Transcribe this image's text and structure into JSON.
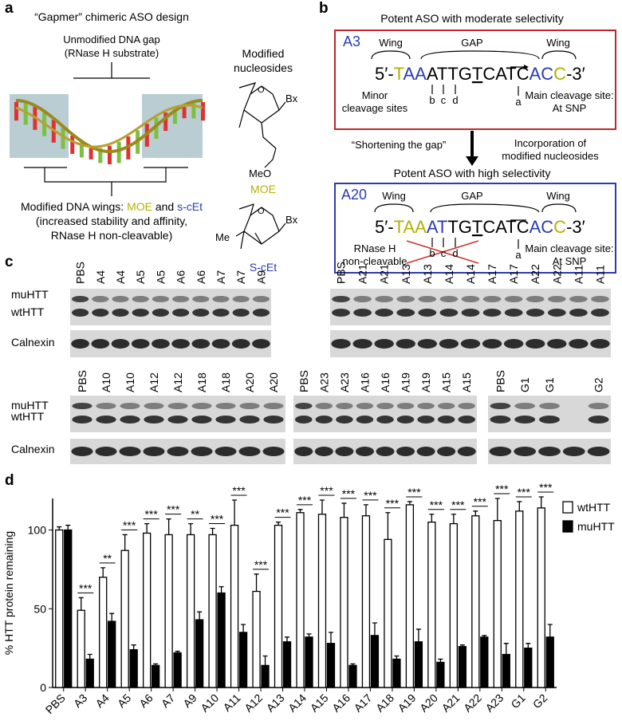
{
  "panel_a": {
    "label": "a",
    "title": "“Gapmer” chimeric ASO design",
    "gap_label": [
      "Unmodified DNA gap",
      "(RNase H substrate)"
    ],
    "mod_title": [
      "Modified",
      "nucleosides"
    ],
    "moe": {
      "bx": "Bx",
      "meo": "MeO",
      "name": "MOE",
      "o": "O"
    },
    "scet": {
      "bx": "Bx",
      "me": "Me",
      "name": "S-cEt",
      "o": "O"
    },
    "wings": {
      "prefix": "Modified DNA wings: ",
      "moe": "MOE",
      "and": " and ",
      "scet": "s-cEt"
    },
    "wings_lines": [
      "(increased stability and affinity,",
      "RNase H non-cleavable)"
    ]
  },
  "panel_b": {
    "label": "b",
    "top_title": "Potent ASO with moderate selectivity",
    "bottom_title": "Potent ASO with high selectivity",
    "a3": {
      "name": "A3",
      "wing": "Wing",
      "gap": "GAP",
      "wing2": "Wing",
      "sequence": [
        {
          "text": "5′-",
          "color": "#000000"
        },
        {
          "text": "T",
          "color": "#b3b000"
        },
        {
          "text": "AA",
          "color": "#2b3bb0"
        },
        {
          "text": "ATTG",
          "color": "#000000"
        },
        {
          "text": "T",
          "color": "#000000",
          "underline": true
        },
        {
          "text": "CATC",
          "color": "#000000"
        },
        {
          "text": "AC",
          "color": "#2b3bb0"
        },
        {
          "text": "C",
          "color": "#b3b000"
        },
        {
          "text": "-3′",
          "color": "#000000"
        }
      ],
      "minor": [
        "Minor",
        "cleavage sites"
      ],
      "sites": [
        "b",
        "c",
        "d"
      ],
      "main_site": "a",
      "main": [
        "Main cleavage site:",
        "At SNP"
      ]
    },
    "middle_left": "“Shortening the gap”",
    "middle_right": [
      "Incorporation of",
      "modified nucleosides"
    ],
    "a20": {
      "name": "A20",
      "wing": "Wing",
      "gap": "GAP",
      "wing2": "Wing",
      "sequence": [
        {
          "text": "5′-",
          "color": "#000000"
        },
        {
          "text": "TAA",
          "color": "#b3b000"
        },
        {
          "text": "AT",
          "color": "#2b3bb0"
        },
        {
          "text": "TG",
          "color": "#000000"
        },
        {
          "text": "T",
          "color": "#000000",
          "underline": true
        },
        {
          "text": "CATC",
          "color": "#000000"
        },
        {
          "text": "AC",
          "color": "#2b3bb0"
        },
        {
          "text": "C",
          "color": "#b3b000"
        },
        {
          "text": "-3′",
          "color": "#000000"
        }
      ],
      "rnase": [
        "RNase H",
        "non-cleavable"
      ],
      "sites": [
        "b",
        "c",
        "d"
      ],
      "main_site": "a",
      "main": [
        "Main cleavage site:",
        "At SNP"
      ]
    }
  },
  "panel_c": {
    "label": "c",
    "rows": [
      {
        "row_labels": [
          "muHTT",
          "wtHTT",
          "Calnexin"
        ],
        "blots": [
          {
            "lanes": [
              "PBS",
              "A4",
              "A4",
              "A5",
              "A5",
              "A6",
              "A6",
              "A7",
              "A7",
              "A9"
            ],
            "lane_colors": [
              "#000000",
              "#c8b400",
              "#c8b400",
              "#2b3bb0",
              "#2b3bb0",
              "#2b3bb0",
              "#2b3bb0",
              "#2b3bb0",
              "#2b3bb0",
              "#2b3bb0"
            ]
          },
          {
            "lanes": [
              "PBS",
              "A21",
              "A21",
              "A13",
              "A13",
              "A14",
              "A14",
              "A17",
              "A17",
              "A22",
              "A22",
              "A11",
              "A11"
            ],
            "lane_colors": [
              "#000000",
              "#2b3bb0",
              "#2b3bb0",
              "#2b3bb0",
              "#2b3bb0",
              "#2b3bb0",
              "#2b3bb0",
              "#2b3bb0",
              "#2b3bb0",
              "#2b3bb0",
              "#2b3bb0",
              "#2b3bb0",
              "#2b3bb0"
            ]
          }
        ]
      },
      {
        "row_labels": [
          "muHTT",
          "wtHTT",
          "Calnexin"
        ],
        "blots": [
          {
            "lanes": [
              "PBS",
              "A10",
              "A10",
              "A12",
              "A12",
              "A18",
              "A18",
              "A20",
              "A20"
            ],
            "lane_colors": [
              "#000000",
              "#c8b400",
              "#c8b400",
              "#2b3bb0",
              "#2b3bb0",
              "#2b3bb0",
              "#2b3bb0",
              "#2b3bb0",
              "#2b3bb0"
            ]
          },
          {
            "lanes": [
              "PBS",
              "A23",
              "A23",
              "A16",
              "A16",
              "A19",
              "A19",
              "A15",
              "A15"
            ],
            "lane_colors": [
              "#000000",
              "#2b3bb0",
              "#2b3bb0",
              "#2b3bb0",
              "#2b3bb0",
              "#2b3bb0",
              "#2b3bb0",
              "#2b3bb0",
              "#2b3bb0"
            ]
          },
          {
            "lanes": [
              "PBS",
              "G1",
              "G1",
              null,
              "G2"
            ],
            "lane_colors": [
              "#000000",
              "#2b3bb0",
              "#2b3bb0",
              "#2b3bb0",
              "#2b3bb0"
            ]
          }
        ]
      }
    ]
  },
  "chart_data": {
    "type": "bar",
    "label": "d",
    "y_label": "% HTT protein remaining",
    "categories": [
      "PBS",
      "A3",
      "A4",
      "A5",
      "A6",
      "A7",
      "A9",
      "A10",
      "A11",
      "A12",
      "A13",
      "A14",
      "A15",
      "A16",
      "A17",
      "A18",
      "A19",
      "A20",
      "A21",
      "A22",
      "A23",
      "G1",
      "G2"
    ],
    "series": [
      {
        "name": "wtHTT",
        "color": "#ffffff",
        "values": [
          100,
          49,
          70,
          87,
          98,
          97,
          97,
          97,
          103,
          61,
          103,
          111,
          110,
          108,
          109,
          94,
          116,
          105,
          104,
          109,
          106,
          112,
          114
        ],
        "errors": [
          2,
          8,
          6,
          10,
          6,
          10,
          7,
          4,
          16,
          11,
          2,
          2,
          9,
          9,
          7,
          17,
          2,
          5,
          6,
          3,
          14,
          6,
          7
        ]
      },
      {
        "name": "muHTT",
        "color": "#000000",
        "values": [
          100,
          18,
          42,
          24,
          14,
          22,
          43,
          60,
          35,
          14,
          29,
          32,
          28,
          14,
          33,
          18,
          29,
          16,
          26,
          32,
          21,
          25,
          32
        ],
        "errors": [
          3,
          3,
          5,
          3,
          1,
          1,
          5,
          4,
          5,
          6,
          3,
          2,
          7,
          1,
          8,
          2,
          8,
          2,
          1,
          1,
          7,
          3,
          8
        ]
      }
    ],
    "significance": [
      null,
      "***",
      "**",
      "***",
      "***",
      "***",
      "**",
      "***",
      "***",
      "***",
      "***",
      "***",
      "***",
      "***",
      "***",
      "***",
      "***",
      "***",
      "***",
      "***",
      "***",
      "***",
      "***"
    ],
    "ylim": [
      0,
      120
    ],
    "yticks": [
      0,
      50,
      100
    ],
    "legend": "top-right"
  }
}
